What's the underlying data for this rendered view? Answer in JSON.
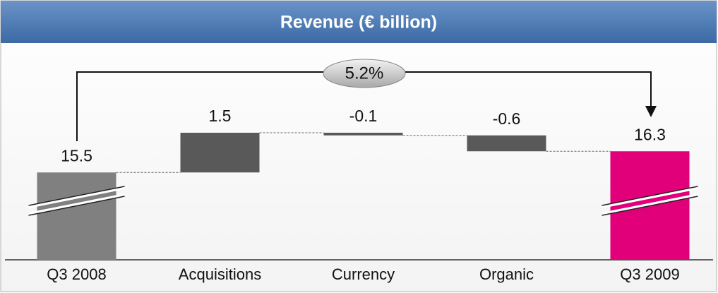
{
  "chart_data": {
    "type": "waterfall",
    "title": "Revenue (€ billion)",
    "categories": [
      "Q3 2008",
      "Acquisitions",
      "Currency",
      "Organic",
      "Q3 2009"
    ],
    "values": [
      15.5,
      1.5,
      -0.1,
      -0.6,
      16.3
    ],
    "measure": [
      "absolute",
      "relative",
      "relative",
      "relative",
      "total"
    ],
    "colors": [
      "#808080",
      "#595959",
      "#595959",
      "#595959",
      "#e2007a"
    ],
    "ylim": [
      12.2,
      20.2
    ],
    "axis_break": true,
    "annotation": "5.2%"
  }
}
